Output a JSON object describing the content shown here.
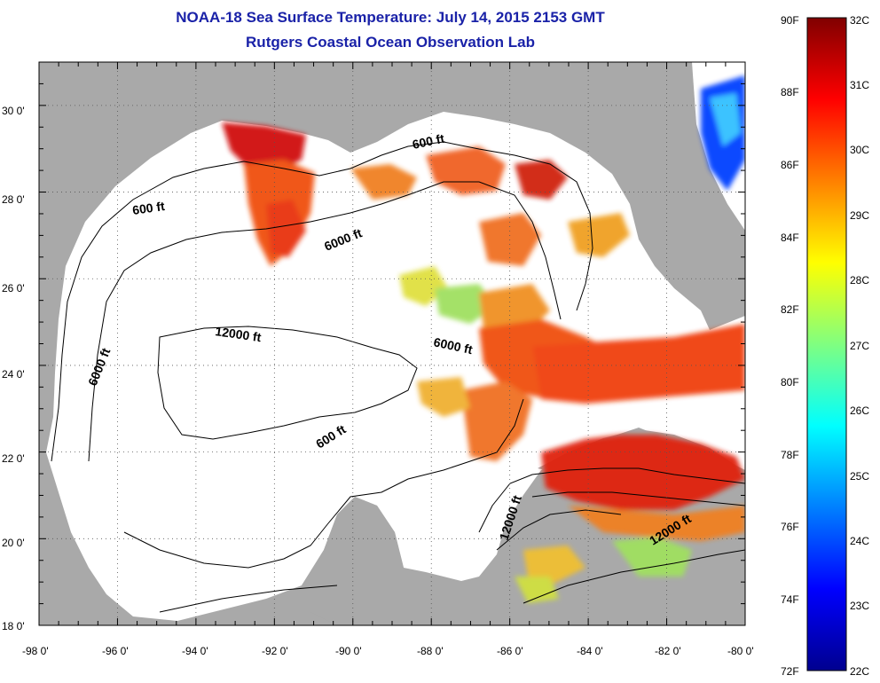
{
  "header": {
    "title": "NOAA-18 Sea Surface Temperature:  July 14, 2015 2153 GMT",
    "subtitle": "Rutgers Coastal Ocean Observation Lab"
  },
  "map": {
    "lon_range": [
      -98,
      -80
    ],
    "lat_range": [
      18,
      31
    ],
    "x_ticks": [
      "-98 0'",
      "-96 0'",
      "-94 0'",
      "-92 0'",
      "-90 0'",
      "-88 0'",
      "-86 0'",
      "-84 0'",
      "-82 0'",
      "-80 0'"
    ],
    "y_ticks": [
      "30 0'",
      "28 0'",
      "26 0'",
      "24 0'",
      "22 0'",
      "20 0'",
      "18 0'"
    ],
    "land_color": "#a9a9a9",
    "water_color": "#ffffff",
    "grid": "dotted",
    "contour_labels": [
      "600 ft",
      "600 ft",
      "600 ft",
      "6000 ft",
      "6000 ft",
      "6000 ft",
      "12000 ft",
      "12000 ft",
      "12000 ft"
    ]
  },
  "colorbar": {
    "min_c": 22,
    "max_c": 32,
    "fahrenheit_labels": [
      "90F",
      "88F",
      "86F",
      "84F",
      "82F",
      "80F",
      "78F",
      "76F",
      "74F",
      "72F"
    ],
    "celsius_labels": [
      "32C",
      "31C",
      "30C",
      "29C",
      "28C",
      "27C",
      "26C",
      "25C",
      "24C",
      "23C",
      "22C"
    ],
    "colors": [
      "#00008f",
      "#0000ff",
      "#0080ff",
      "#00ffff",
      "#80ff80",
      "#ffff00",
      "#ff8000",
      "#ff0000",
      "#800000"
    ]
  }
}
